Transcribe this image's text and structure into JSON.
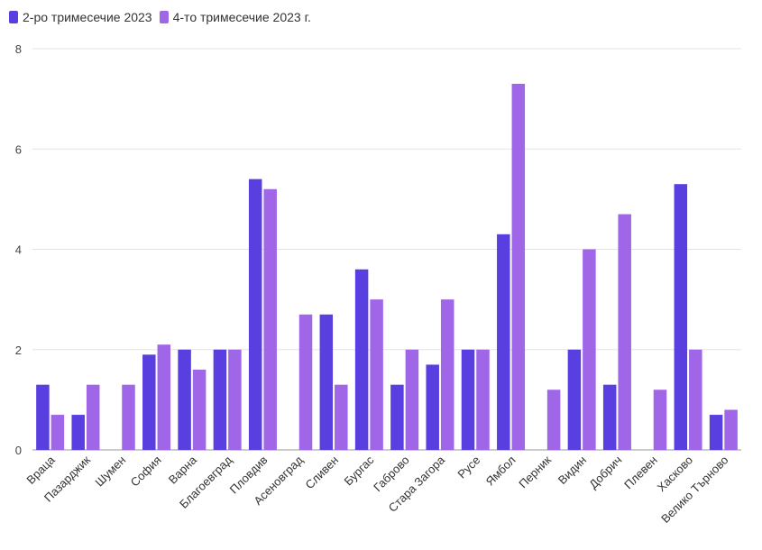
{
  "chart_data": {
    "type": "bar",
    "categories": [
      "Враца",
      "Пазарджик",
      "Шумен",
      "София",
      "Варна",
      "Благоевград",
      "Пловдив",
      "Асеновград",
      "Сливен",
      "Бургас",
      "Габрово",
      "Стара Загора",
      "Русе",
      "Ямбол",
      "Перник",
      "Видин",
      "Добрич",
      "Плевен",
      "Хасково",
      "Велико Търново"
    ],
    "series": [
      {
        "name": "2-ро тримесечие 2023",
        "color": "#5a3fe0",
        "values": [
          1.3,
          0.7,
          null,
          1.9,
          2.0,
          2.0,
          5.4,
          null,
          2.7,
          3.6,
          1.3,
          1.7,
          2.0,
          4.3,
          null,
          2.0,
          1.3,
          null,
          5.3,
          0.7
        ]
      },
      {
        "name": "4-то тримесечие 2023 г.",
        "color": "#a066e8",
        "values": [
          0.7,
          1.3,
          1.3,
          2.1,
          1.6,
          2.0,
          5.2,
          2.7,
          1.3,
          3.0,
          2.0,
          3.0,
          2.0,
          7.3,
          1.2,
          4.0,
          4.7,
          1.2,
          2.0,
          0.8
        ]
      }
    ],
    "ylim": [
      0,
      8
    ],
    "yticks": [
      "0",
      "2",
      "4",
      "6",
      "8"
    ],
    "grid": true,
    "legend_position": "top-left"
  }
}
